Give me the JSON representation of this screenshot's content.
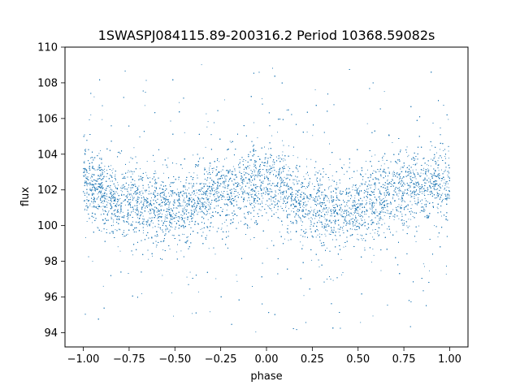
{
  "chart_data": {
    "type": "scatter",
    "title": "1SWASPJ084115.89-200316.2 Period 10368.59082s",
    "xlabel": "phase",
    "ylabel": "flux",
    "xlim": [
      -1.1,
      1.1
    ],
    "ylim": [
      93.2,
      110.0
    ],
    "xticks": [
      -1.0,
      -0.75,
      -0.5,
      -0.25,
      0.0,
      0.25,
      0.5,
      0.75,
      1.0
    ],
    "xtick_labels": [
      "−1.00",
      "−0.75",
      "−0.50",
      "−0.25",
      "0.00",
      "0.25",
      "0.50",
      "0.75",
      "1.00"
    ],
    "yticks": [
      94,
      96,
      98,
      100,
      102,
      104,
      106,
      108,
      110
    ],
    "ytick_labels": [
      "94",
      "96",
      "98",
      "100",
      "102",
      "104",
      "106",
      "108",
      "110"
    ],
    "grid": false,
    "marker_color": "#1f77b4",
    "series": [
      {
        "points_approx": 16000,
        "x_range": [
          -1.0,
          1.0
        ],
        "mean_flux_by_phase": {
          "x": [
            -1.0,
            -0.75,
            -0.5,
            -0.25,
            0.0,
            0.25,
            0.5,
            0.75,
            1.0
          ],
          "y": [
            102.3,
            101.3,
            100.9,
            101.9,
            102.5,
            101.2,
            100.9,
            102.0,
            102.4
          ]
        },
        "core_spread": 1.0,
        "outlier_range": [
          94.0,
          109.0
        ]
      }
    ]
  }
}
